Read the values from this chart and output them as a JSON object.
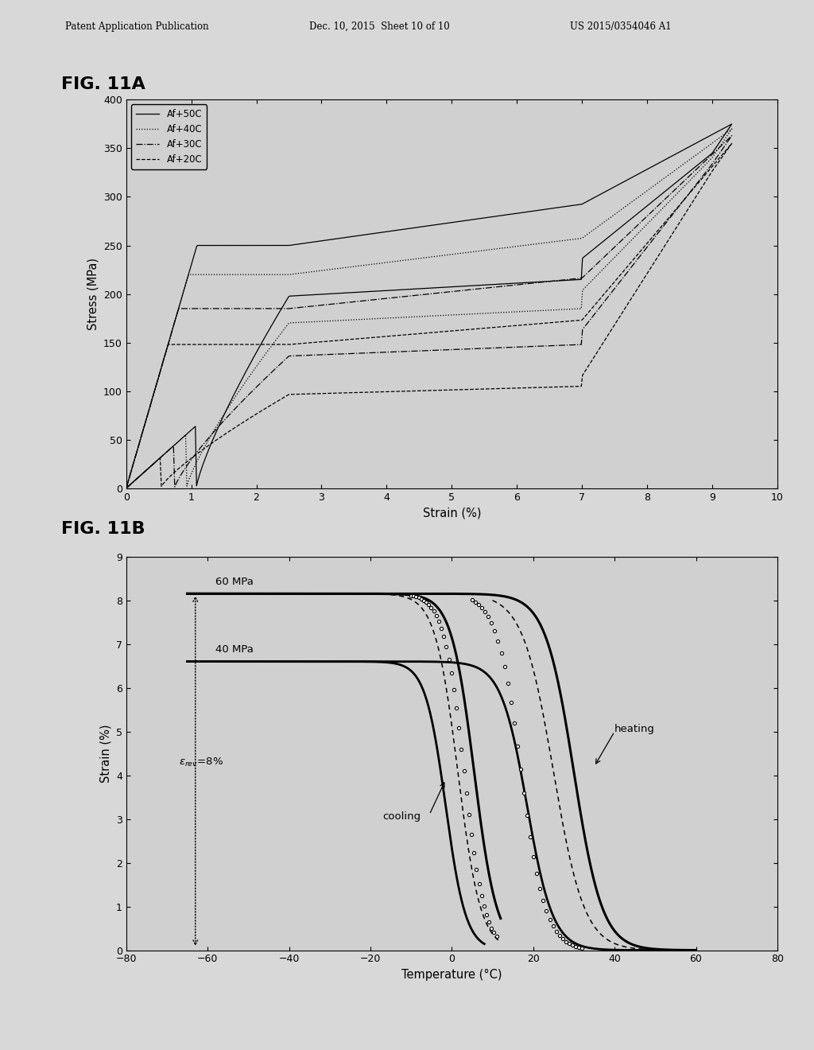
{
  "fig11a_title": "FIG. 11A",
  "fig11b_title": "FIG. 11B",
  "header_left": "Patent Application Publication",
  "header_center": "Dec. 10, 2015  Sheet 10 of 10",
  "header_right": "US 2015/0354046 A1",
  "fig11a": {
    "xlabel": "Strain (%)",
    "ylabel": "Stress (MPa)",
    "xlim": [
      0,
      10
    ],
    "ylim": [
      0,
      400
    ],
    "xticks": [
      0,
      1,
      2,
      3,
      4,
      5,
      6,
      7,
      8,
      9,
      10
    ],
    "yticks": [
      0,
      50,
      100,
      150,
      200,
      250,
      300,
      350,
      400
    ],
    "legend_labels": [
      "Af+50C",
      "Af+40C",
      "Af+30C",
      "Af+20C"
    ],
    "legend_styles": [
      "-",
      ":",
      "-.",
      "--"
    ],
    "curves": [
      {
        "plateau_load": 250,
        "plateau_unload": 215,
        "final_stress": 375,
        "linestyle": "-"
      },
      {
        "plateau_load": 220,
        "plateau_unload": 185,
        "final_stress": 370,
        "linestyle": ":"
      },
      {
        "plateau_load": 185,
        "plateau_unload": 148,
        "final_stress": 363,
        "linestyle": "-."
      },
      {
        "plateau_load": 148,
        "plateau_unload": 105,
        "final_stress": 355,
        "linestyle": "--"
      }
    ]
  },
  "fig11b": {
    "xlabel": "Temperature (°C)",
    "ylabel": "Strain (%)",
    "xlim": [
      -80,
      80
    ],
    "ylim": [
      0,
      9
    ],
    "xticks": [
      -80,
      -60,
      -40,
      -20,
      0,
      20,
      40,
      60,
      80
    ],
    "yticks": [
      0,
      1,
      2,
      3,
      4,
      5,
      6,
      7,
      8,
      9
    ]
  },
  "bg_color": "#d8d8d8",
  "page_bg": "#e0e0e0"
}
